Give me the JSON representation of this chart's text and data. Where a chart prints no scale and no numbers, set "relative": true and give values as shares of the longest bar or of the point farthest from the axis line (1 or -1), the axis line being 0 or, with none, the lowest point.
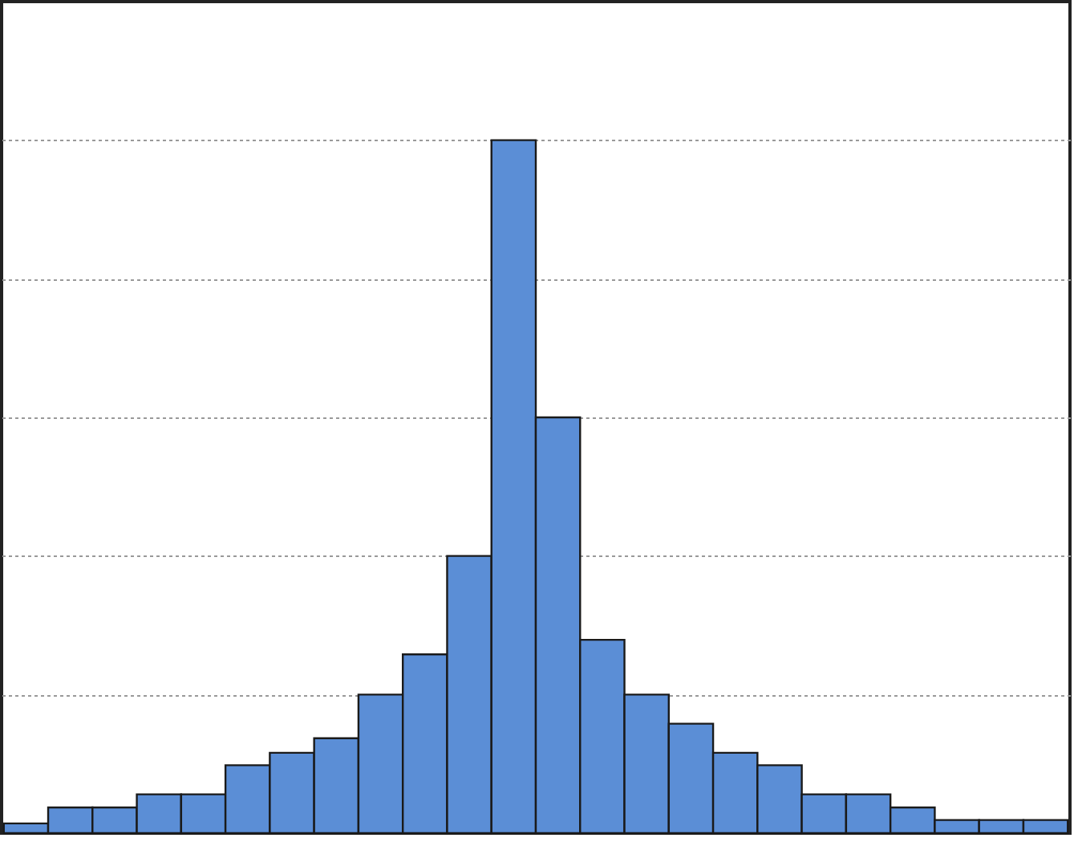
{
  "chart_data": {
    "type": "bar",
    "relative": true,
    "grid": "y",
    "color": "#5b8ed6",
    "categories": [
      null,
      null,
      null,
      null,
      null,
      null,
      null,
      null,
      null,
      null,
      null,
      null,
      null,
      null,
      null,
      null,
      null,
      null,
      null,
      null,
      null,
      null,
      null,
      null
    ],
    "values": [
      0.014,
      0.037,
      0.037,
      0.056,
      0.056,
      0.098,
      0.116,
      0.137,
      0.2,
      0.258,
      0.4,
      1.0,
      0.6,
      0.279,
      0.2,
      0.158,
      0.116,
      0.098,
      0.056,
      0.056,
      0.037,
      0.019,
      0.019,
      0.019
    ]
  }
}
